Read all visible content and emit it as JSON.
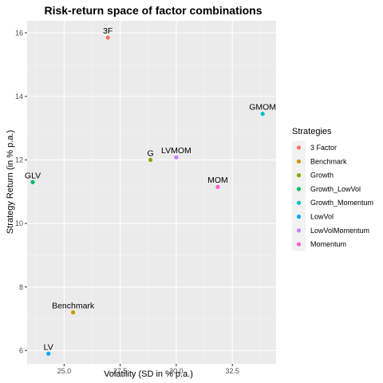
{
  "chart_data": {
    "type": "scatter",
    "title": "Risk-return space of factor combinations",
    "xlabel": "Volatility (SD in % p.a.)",
    "ylabel": "Strategy Return (in % p.a.)",
    "xlim": [
      23.35,
      34.45
    ],
    "ylim": [
      5.58,
      16.38
    ],
    "x_ticks": [
      25.0,
      27.5,
      30.0,
      32.5
    ],
    "x_tick_labels": [
      "25.0",
      "27.5",
      "30.0",
      "32.5"
    ],
    "y_ticks": [
      6,
      8,
      10,
      12,
      14,
      16
    ],
    "y_tick_labels": [
      "6",
      "8",
      "10",
      "12",
      "14",
      "16"
    ],
    "grid": true,
    "legend_title": "Strategies",
    "legend_position": "right",
    "series": [
      {
        "name": "3 Factor",
        "label": "3F",
        "x": 26.95,
        "y": 15.85,
        "color": "#F8766D"
      },
      {
        "name": "Benchmark",
        "label": "Benchmark",
        "x": 25.4,
        "y": 7.2,
        "color": "#CD9600"
      },
      {
        "name": "Growth",
        "label": "G",
        "x": 28.85,
        "y": 12.0,
        "color": "#7CAE00"
      },
      {
        "name": "Growth_LowVol",
        "label": "GLV",
        "x": 23.6,
        "y": 11.3,
        "color": "#00BE67"
      },
      {
        "name": "Growth_Momentum",
        "label": "GMOM",
        "x": 33.85,
        "y": 13.45,
        "color": "#00BFC4"
      },
      {
        "name": "LowVol",
        "label": "LV",
        "x": 24.3,
        "y": 5.9,
        "color": "#00A9FF"
      },
      {
        "name": "LowVolMomentum",
        "label": "LVMOM",
        "x": 30.0,
        "y": 12.08,
        "color": "#C77CFF"
      },
      {
        "name": "Momentum",
        "label": "MOM",
        "x": 31.85,
        "y": 11.15,
        "color": "#FF61CC"
      }
    ]
  }
}
